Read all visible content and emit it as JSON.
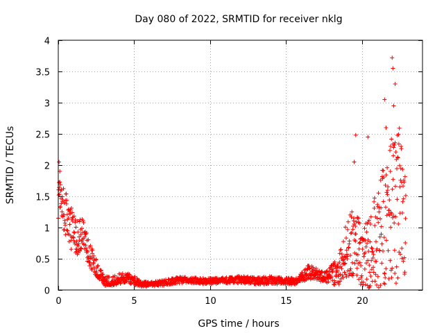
{
  "chart_data": {
    "type": "scatter",
    "title": "Day 080 of 2022, SRMTID for receiver nklg",
    "xlabel": "GPS time / hours",
    "ylabel": "SRMTID / TECUs",
    "xlim": [
      0,
      24
    ],
    "ylim": [
      0,
      4
    ],
    "xticks": [
      0,
      5,
      10,
      15,
      20
    ],
    "yticks": [
      0,
      0.5,
      1,
      1.5,
      2,
      2.5,
      3,
      3.5,
      4
    ],
    "xtick_labels": [
      "0",
      "5",
      "10",
      "15",
      "20"
    ],
    "ytick_labels": [
      "0",
      "0.5",
      "1",
      "1.5",
      "2",
      "2.5",
      "3",
      "3.5",
      "4"
    ],
    "grid": true,
    "marker": "+",
    "series": [
      {
        "name": "SRMTID",
        "color": "#ff0000",
        "profile_x": [
          0,
          0.3,
          0.8,
          1.2,
          1.6,
          2.0,
          2.5,
          3.0,
          3.5,
          4.0,
          4.5,
          5.0,
          5.5,
          6.0,
          7.0,
          8.0,
          9.0,
          10.0,
          11.0,
          12.0,
          13.0,
          14.0,
          15.0,
          15.8,
          16.5,
          17.0,
          17.5,
          18.0,
          18.5,
          19.0,
          19.5,
          20.0,
          20.5,
          21.0,
          21.5,
          22.0,
          22.5,
          22.9
        ],
        "profile_y": [
          1.6,
          1.3,
          1.0,
          0.85,
          0.9,
          0.6,
          0.35,
          0.15,
          0.13,
          0.18,
          0.2,
          0.15,
          0.1,
          0.09,
          0.12,
          0.16,
          0.15,
          0.14,
          0.15,
          0.17,
          0.14,
          0.16,
          0.14,
          0.15,
          0.3,
          0.25,
          0.2,
          0.25,
          0.35,
          0.6,
          0.8,
          0.5,
          0.6,
          0.8,
          1.0,
          1.2,
          1.4,
          1.0
        ],
        "profile_spread": [
          0.45,
          0.4,
          0.35,
          0.3,
          0.25,
          0.2,
          0.15,
          0.08,
          0.07,
          0.09,
          0.09,
          0.07,
          0.05,
          0.04,
          0.05,
          0.05,
          0.05,
          0.05,
          0.05,
          0.06,
          0.06,
          0.06,
          0.06,
          0.06,
          0.12,
          0.1,
          0.08,
          0.15,
          0.3,
          0.5,
          0.6,
          0.5,
          0.6,
          0.9,
          1.0,
          1.3,
          1.2,
          0.8
        ],
        "peaks": [
          {
            "x": 22.0,
            "y": 3.72
          },
          {
            "x": 22.05,
            "y": 3.55
          },
          {
            "x": 22.2,
            "y": 3.3
          },
          {
            "x": 21.5,
            "y": 3.05
          },
          {
            "x": 22.1,
            "y": 2.95
          },
          {
            "x": 21.6,
            "y": 2.6
          },
          {
            "x": 19.6,
            "y": 2.48
          },
          {
            "x": 20.4,
            "y": 2.45
          },
          {
            "x": 21.9,
            "y": 2.3
          },
          {
            "x": 19.5,
            "y": 2.05
          },
          {
            "x": 0.05,
            "y": 2.05
          },
          {
            "x": 0.1,
            "y": 1.9
          }
        ],
        "samples": 1400
      }
    ]
  }
}
